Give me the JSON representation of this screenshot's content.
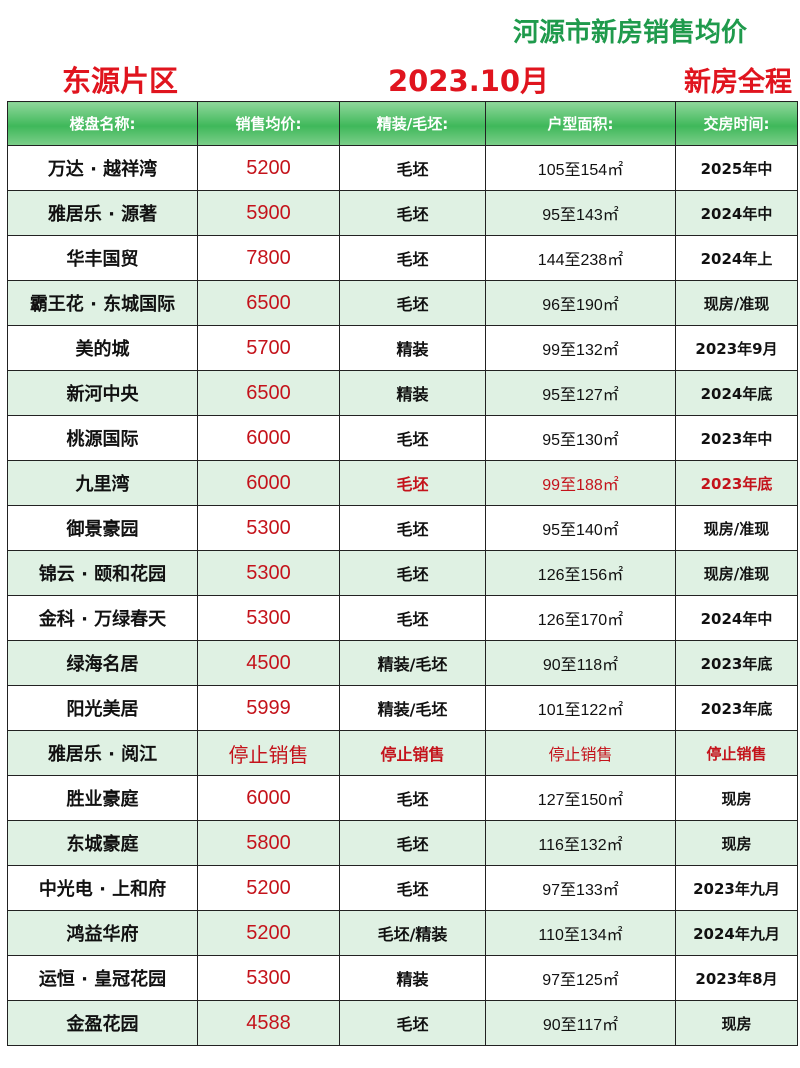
{
  "header": {
    "title": "河源市新房销售均价",
    "district": "东源片区",
    "date": "2023.10月",
    "right_label": "新房全程"
  },
  "colors": {
    "title_green": "#1f9a4c",
    "red": "#e0141e",
    "price_red": "#c4131b",
    "row_green": "#dff1e3"
  },
  "table": {
    "columns": [
      "楼盘名称:",
      "销售均价:",
      "精装/毛坯:",
      "户型面积:",
      "交房时间:"
    ],
    "rows": [
      {
        "name": "万达 · 越祥湾",
        "price": "5200",
        "finish": "毛坯",
        "area": "105至154㎡",
        "delivery": "2025年中"
      },
      {
        "name": "雅居乐 · 源著",
        "price": "5900",
        "finish": "毛坯",
        "area": "95至143㎡",
        "delivery": "2024年中"
      },
      {
        "name": "华丰国贸",
        "price": "7800",
        "finish": "毛坯",
        "area": "144至238㎡",
        "delivery": "2024年上"
      },
      {
        "name": "霸王花 · 东城国际",
        "price": "6500",
        "finish": "毛坯",
        "area": "96至190㎡",
        "delivery": "现房/准现"
      },
      {
        "name": "美的城",
        "price": "5700",
        "finish": "精装",
        "area": "99至132㎡",
        "delivery": "2023年9月"
      },
      {
        "name": "新河中央",
        "price": "6500",
        "finish": "精装",
        "area": "95至127㎡",
        "delivery": "2024年底"
      },
      {
        "name": "桃源国际",
        "price": "6000",
        "finish": "毛坯",
        "area": "95至130㎡",
        "delivery": "2023年中"
      },
      {
        "name": "九里湾",
        "price": "6000",
        "finish": "毛坯",
        "area": "99至188㎡",
        "delivery": "2023年底",
        "highlight": true
      },
      {
        "name": "御景豪园",
        "price": "5300",
        "finish": "毛坯",
        "area": "95至140㎡",
        "delivery": "现房/准现"
      },
      {
        "name": "锦云 · 颐和花园",
        "price": "5300",
        "finish": "毛坯",
        "area": "126至156㎡",
        "delivery": "现房/准现"
      },
      {
        "name": "金科 · 万绿春天",
        "price": "5300",
        "finish": "毛坯",
        "area": "126至170㎡",
        "delivery": "2024年中"
      },
      {
        "name": "绿海名居",
        "price": "4500",
        "finish": "精装/毛坯",
        "area": "90至118㎡",
        "delivery": "2023年底"
      },
      {
        "name": "阳光美居",
        "price": "5999",
        "finish": "精装/毛坯",
        "area": "101至122㎡",
        "delivery": "2023年底"
      },
      {
        "name": "雅居乐 · 阅江",
        "price": "停止销售",
        "finish": "停止销售",
        "area": "停止销售",
        "delivery": "停止销售",
        "stopped": true
      },
      {
        "name": "胜业豪庭",
        "price": "6000",
        "finish": "毛坯",
        "area": "127至150㎡",
        "delivery": "现房"
      },
      {
        "name": "东城豪庭",
        "price": "5800",
        "finish": "毛坯",
        "area": "116至132㎡",
        "delivery": "现房"
      },
      {
        "name": "中光电 · 上和府",
        "price": "5200",
        "finish": "毛坯",
        "area": "97至133㎡",
        "delivery": "2023年九月"
      },
      {
        "name": "鸿益华府",
        "price": "5200",
        "finish": "毛坯/精装",
        "area": "110至134㎡",
        "delivery": "2024年九月"
      },
      {
        "name": "运恒 · 皇冠花园",
        "price": "5300",
        "finish": "精装",
        "area": "97至125㎡",
        "delivery": "2023年8月"
      },
      {
        "name": "金盈花园",
        "price": "4588",
        "finish": "毛坯",
        "area": "90至117㎡",
        "delivery": "现房"
      }
    ]
  }
}
